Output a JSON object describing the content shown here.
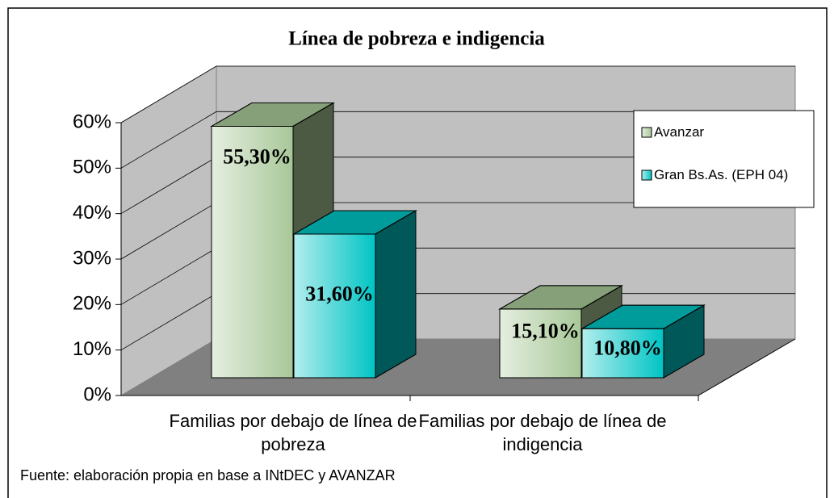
{
  "chart_data": {
    "type": "bar3d",
    "title": "Línea de pobreza e indigencia",
    "categories": [
      "Familias por debajo de línea de pobreza",
      "Familias por debajo de línea de indigencia"
    ],
    "series": [
      {
        "name": "Avanzar",
        "color": "#a8c898",
        "values": [
          55.3,
          15.1
        ],
        "value_labels": [
          "55,30%",
          "15,10%"
        ]
      },
      {
        "name": "Gran Bs.As. (EPH 04)",
        "color": "#00c4c4",
        "values": [
          31.6,
          10.8
        ],
        "value_labels": [
          "31,60%",
          "10,80%"
        ]
      }
    ],
    "ylim": [
      0,
      60
    ],
    "yticks": [
      {
        "value": 0,
        "label": "0%"
      },
      {
        "value": 10,
        "label": "10%"
      },
      {
        "value": 20,
        "label": "20%"
      },
      {
        "value": 30,
        "label": "30%"
      },
      {
        "value": 40,
        "label": "40%"
      },
      {
        "value": 50,
        "label": "50%"
      },
      {
        "value": 60,
        "label": "60%"
      }
    ],
    "grid": true,
    "legend": "upper-right",
    "footnote": "Fuente: elaboración propia en base a INtDEC y AVANZAR"
  }
}
